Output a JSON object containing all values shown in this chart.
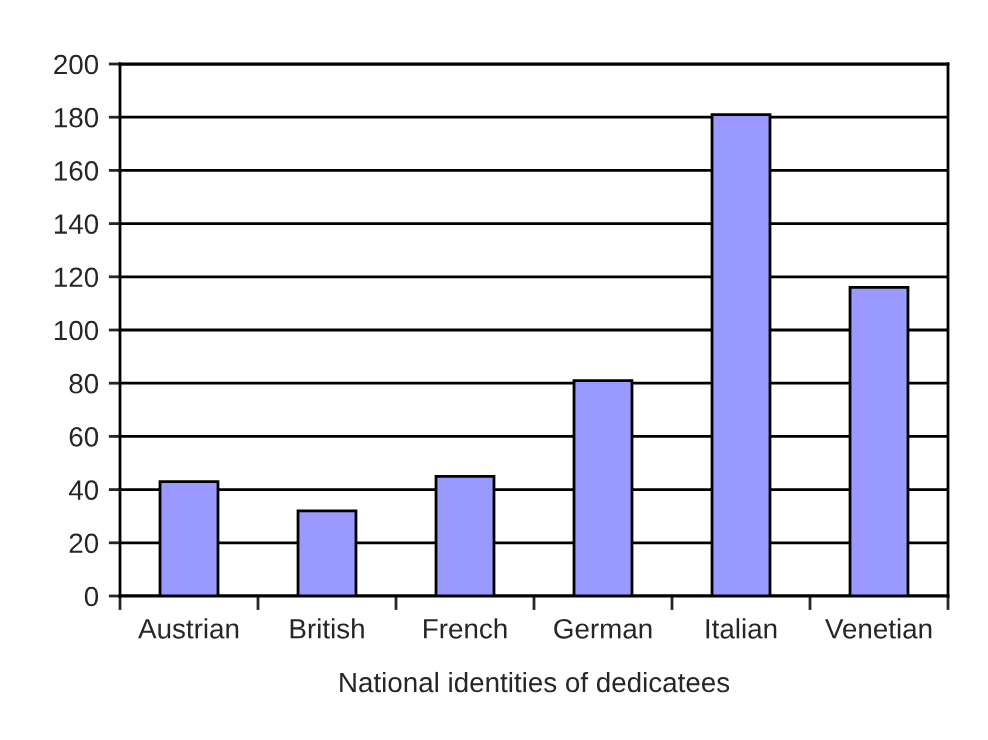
{
  "chart_data": {
    "type": "bar",
    "xlabel": "National identities of dedicatees",
    "categories": [
      "Austrian",
      "British",
      "French",
      "German",
      "Italian",
      "Venetian"
    ],
    "values": [
      43,
      32,
      45,
      81,
      181,
      116
    ],
    "color": "#9999ff",
    "ylim": [
      0,
      200
    ],
    "yticks": [
      0,
      20,
      40,
      60,
      80,
      100,
      120,
      140,
      160,
      180,
      200
    ],
    "grid": "y"
  }
}
